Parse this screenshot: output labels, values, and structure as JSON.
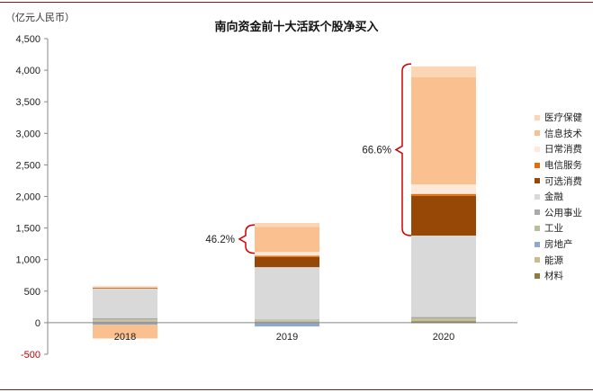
{
  "chart_data": {
    "type": "bar",
    "stacked": true,
    "title": "南向资金前十大活跃个股净买入",
    "unit_label": "（亿元人民币）",
    "categories": [
      "2018",
      "2019",
      "2020"
    ],
    "y_ticks": [
      "4,500",
      "4,000",
      "3,500",
      "3,000",
      "2,500",
      "2,000",
      "1,500",
      "1,000",
      "500",
      "0",
      "-500"
    ],
    "ylim": [
      -500,
      4500
    ],
    "grid": false,
    "legend_position": "right",
    "series": [
      {
        "name": "材料",
        "color": "#8c7b3f",
        "values": [
          10,
          10,
          20
        ]
      },
      {
        "name": "能源",
        "color": "#c8bc8e",
        "values": [
          20,
          20,
          30
        ]
      },
      {
        "name": "房地产",
        "color": "#8fa8cf",
        "values": [
          -30,
          -60,
          -10
        ]
      },
      {
        "name": "工业",
        "color": "#b5c09a",
        "values": [
          20,
          10,
          20
        ]
      },
      {
        "name": "公用事业",
        "color": "#a9a9a9",
        "values": [
          20,
          10,
          20
        ]
      },
      {
        "name": "金融",
        "color": "#d9d9d9",
        "values": [
          470,
          830,
          1290
        ]
      },
      {
        "name": "可选消费",
        "color": "#974706",
        "values": [
          10,
          160,
          630
        ]
      },
      {
        "name": "电信服务",
        "color": "#e46c0a",
        "values": [
          5,
          20,
          30
        ]
      },
      {
        "name": "日常消费",
        "color": "#fde9d9",
        "values": [
          5,
          60,
          150
        ]
      },
      {
        "name": "信息技术",
        "color": "#fac090",
        "values": [
          -220,
          400,
          1700
        ]
      },
      {
        "name": "医疗保健",
        "color": "#fcd5b5",
        "values": [
          20,
          60,
          170
        ]
      }
    ],
    "annotations": [
      {
        "text": "46.2%",
        "category": "2019",
        "range": [
          1100,
          1550
        ]
      },
      {
        "text": "66.6%",
        "category": "2020",
        "range": [
          1380,
          4100
        ]
      }
    ]
  }
}
